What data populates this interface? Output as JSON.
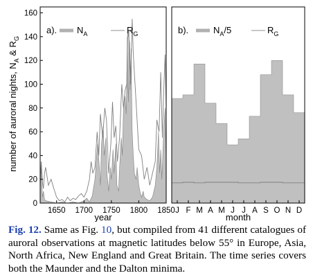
{
  "figure": {
    "ylabel_main": "number of auroral nights, N",
    "ylabel_sub_a": "A",
    "ylabel_amp": " & R",
    "ylabel_sub_g": "G",
    "colors": {
      "na": "#c0c0c0",
      "na_dark": "#808080",
      "rg": "#7f7f7f",
      "axis": "#000000"
    }
  },
  "chart_data": [
    {
      "type": "area",
      "panel_label": "a).",
      "legend": [
        "N_A",
        "R_G"
      ],
      "legend_placement": "top",
      "xlabel": "year",
      "xlim": [
        1620,
        1850
      ],
      "ylim": [
        0,
        165
      ],
      "xticks": [
        1650,
        1700,
        1750,
        1800,
        1850
      ],
      "yticks": [
        0,
        20,
        40,
        60,
        80,
        100,
        120,
        140,
        160
      ],
      "series": [
        {
          "name": "N_A",
          "x": [
            1620,
            1622,
            1624,
            1626,
            1628,
            1630,
            1640,
            1650,
            1660,
            1670,
            1680,
            1690,
            1700,
            1705,
            1710,
            1715,
            1720,
            1725,
            1728,
            1730,
            1732,
            1735,
            1737,
            1740,
            1742,
            1745,
            1748,
            1750,
            1753,
            1755,
            1758,
            1760,
            1763,
            1765,
            1768,
            1770,
            1772,
            1775,
            1777,
            1778,
            1779,
            1780,
            1781,
            1782,
            1783,
            1784,
            1785,
            1786,
            1787,
            1788,
            1790,
            1792,
            1795,
            1797,
            1800,
            1803,
            1805,
            1808,
            1810,
            1815,
            1820,
            1825,
            1830,
            1833,
            1836,
            1838,
            1840,
            1842,
            1845,
            1848,
            1850
          ],
          "y": [
            12,
            30,
            5,
            10,
            3,
            2,
            1,
            0,
            1,
            0,
            1,
            0,
            2,
            4,
            1,
            6,
            20,
            50,
            30,
            15,
            50,
            65,
            40,
            55,
            25,
            10,
            30,
            20,
            45,
            25,
            50,
            15,
            10,
            30,
            55,
            40,
            80,
            90,
            75,
            100,
            140,
            100,
            85,
            145,
            120,
            95,
            110,
            130,
            90,
            60,
            40,
            25,
            20,
            30,
            15,
            8,
            5,
            10,
            5,
            3,
            2,
            5,
            15,
            30,
            60,
            25,
            45,
            20,
            55,
            80,
            35
          ]
        },
        {
          "name": "R_G",
          "x": [
            1620,
            1622,
            1624,
            1626,
            1628,
            1630,
            1635,
            1640,
            1645,
            1650,
            1655,
            1660,
            1665,
            1670,
            1675,
            1680,
            1685,
            1690,
            1695,
            1700,
            1705,
            1710,
            1713,
            1716,
            1720,
            1724,
            1727,
            1730,
            1734,
            1738,
            1741,
            1745,
            1749,
            1752,
            1755,
            1758,
            1761,
            1765,
            1769,
            1772,
            1775,
            1778,
            1780,
            1783,
            1785,
            1788,
            1790,
            1795,
            1800,
            1805,
            1810,
            1815,
            1820,
            1825,
            1830,
            1833,
            1837,
            1840,
            1843,
            1846,
            1848,
            1850
          ],
          "y": [
            20,
            35,
            18,
            12,
            25,
            30,
            15,
            20,
            12,
            5,
            2,
            3,
            1,
            5,
            2,
            4,
            3,
            6,
            8,
            5,
            10,
            20,
            35,
            25,
            30,
            60,
            40,
            75,
            55,
            80,
            70,
            25,
            50,
            85,
            55,
            65,
            35,
            55,
            100,
            80,
            95,
            100,
            145,
            135,
            100,
            155,
            125,
            85,
            45,
            40,
            20,
            30,
            15,
            25,
            35,
            70,
            60,
            110,
            55,
            100,
            125,
            80
          ]
        }
      ]
    },
    {
      "type": "bar",
      "panel_label": "b).",
      "legend": [
        "N_A/5",
        "R_G"
      ],
      "legend_placement": "top",
      "xlabel": "month",
      "ylim": [
        0,
        165
      ],
      "categories": [
        "J",
        "F",
        "M",
        "A",
        "M",
        "J",
        "J",
        "A",
        "S",
        "O",
        "N",
        "D"
      ],
      "series": [
        {
          "name": "N_A/5",
          "values": [
            88,
            91,
            117,
            84,
            67,
            49,
            54,
            73,
            108,
            120,
            91,
            76
          ]
        },
        {
          "name": "R_G",
          "values": [
            17,
            17.5,
            17,
            17.5,
            17.5,
            17.5,
            17,
            17,
            17.5,
            17.5,
            17,
            17
          ]
        }
      ]
    }
  ],
  "caption": {
    "label": "Fig. 12.",
    "pre": " Same as Fig. ",
    "ref": "10",
    "text": ", but compiled from 41 different catalogues of auroral observations at magnetic latitudes below 55° in Europe, Asia, North Africa, New England and Great Britain. The time series covers both the Maunder and the Dalton minima."
  }
}
